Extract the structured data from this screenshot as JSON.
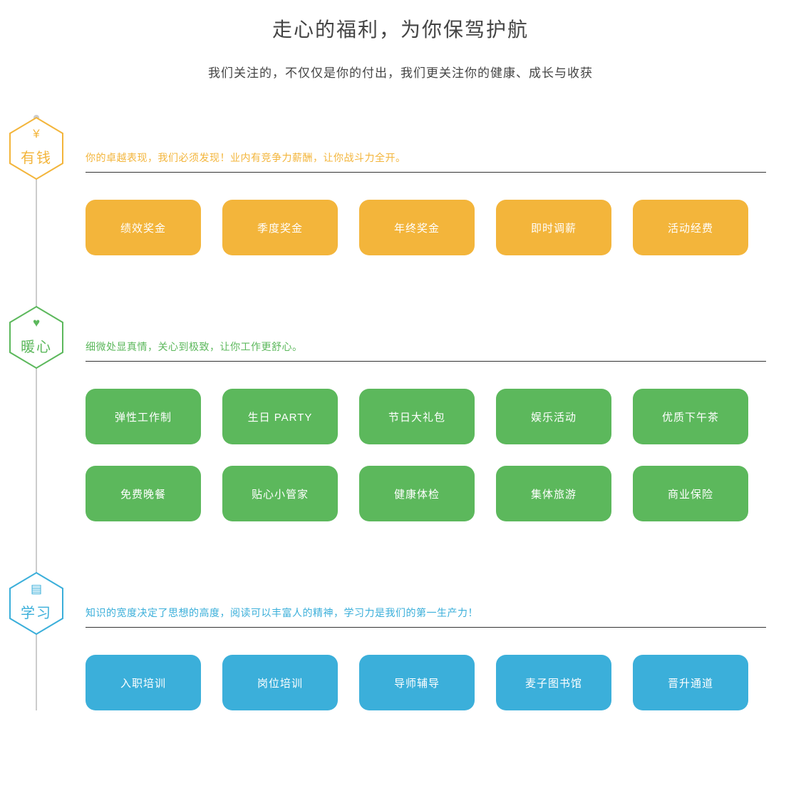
{
  "header": {
    "title": "走心的福利，为你保驾护航",
    "subtitle": "我们关注的，不仅仅是你的付出，我们更关注你的健康、成长与收获"
  },
  "styling": {
    "background_color": "#ffffff",
    "title_color": "#444444",
    "title_fontsize": 28,
    "subtitle_color": "#444444",
    "subtitle_fontsize": 17,
    "timeline_line_color": "#cccccc",
    "divider_color": "#333333",
    "section_desc_fontsize": 14,
    "pill_width": 162,
    "pill_height": 78,
    "pill_radius": 14,
    "pill_fontsize": 15,
    "pill_text_color": "#ffffff",
    "hex_label_fontsize": 20,
    "pill_gap": 30
  },
  "sections": [
    {
      "id": "money",
      "hex_label": "有钱",
      "hex_icon": "¥",
      "icon_name": "yen-icon",
      "color": "#f3b53b",
      "desc": "你的卓越表现，我们必须发现！业内有竞争力薪酬，让你战斗力全开。",
      "pills": [
        "绩效奖金",
        "季度奖金",
        "年终奖金",
        "即时调薪",
        "活动经费"
      ]
    },
    {
      "id": "warm",
      "hex_label": "暖心",
      "hex_icon": "♥",
      "icon_name": "heart-icon",
      "color": "#5cb85c",
      "desc": "细微处显真情，关心到极致，让你工作更舒心。",
      "pills": [
        "弹性工作制",
        "生日 PARTY",
        "节日大礼包",
        "娱乐活动",
        "优质下午茶",
        "免费晚餐",
        "贴心小管家",
        "健康体检",
        "集体旅游",
        "商业保险"
      ]
    },
    {
      "id": "learn",
      "hex_label": "学习",
      "hex_icon": "▤",
      "icon_name": "book-icon",
      "color": "#3bafda",
      "desc": "知识的宽度决定了思想的高度，阅读可以丰富人的精神，学习力是我们的第一生产力！",
      "pills": [
        "入职培训",
        "岗位培训",
        "导师辅导",
        "麦子图书馆",
        "晋升通道"
      ]
    }
  ]
}
